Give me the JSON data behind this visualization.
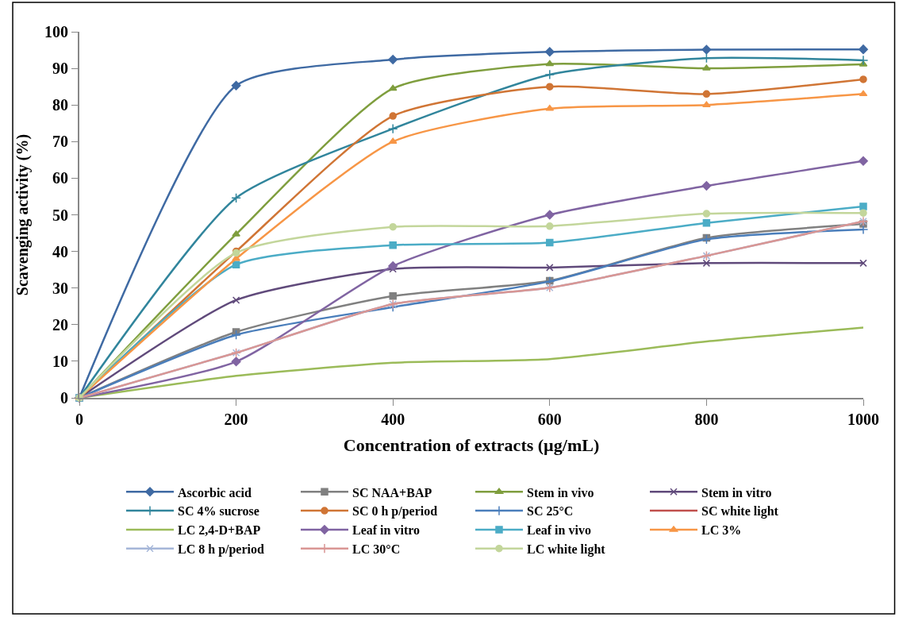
{
  "chart_data": {
    "type": "line",
    "xlabel": "Concentration of extracts (µg/mL)",
    "ylabel": "Scavenging activity (%)",
    "x": [
      0,
      200,
      400,
      600,
      800,
      1000
    ],
    "xlim": [
      0,
      1000
    ],
    "xticks": [
      0,
      200,
      400,
      600,
      800,
      1000
    ],
    "ylim": [
      0,
      100
    ],
    "yticks": [
      0,
      10,
      20,
      30,
      40,
      50,
      60,
      70,
      80,
      90,
      100
    ],
    "legend": "bottom",
    "series": [
      {
        "name": "Ascorbic acid",
        "color": "#3f6aa3",
        "marker": "diamond",
        "values": [
          0,
          85.3,
          92.4,
          94.5,
          95.1,
          95.2
        ]
      },
      {
        "name": "SC NAA+BAP",
        "color": "#808080",
        "marker": "square",
        "values": [
          0,
          18,
          27.8,
          32,
          43.7,
          47.5
        ]
      },
      {
        "name": "Stem in vivo",
        "color": "#7f9e3e",
        "marker": "triangle",
        "values": [
          0,
          44.7,
          84.5,
          91.2,
          90,
          91.1
        ]
      },
      {
        "name": "Stem in vitro",
        "color": "#604a7b",
        "marker": "x",
        "values": [
          0,
          26.7,
          35.2,
          35.6,
          36.8,
          36.8
        ]
      },
      {
        "name": "SC 4% sucrose",
        "color": "#31859c",
        "marker": "cross",
        "values": [
          0,
          54.6,
          73.5,
          88.3,
          92.8,
          92.2
        ]
      },
      {
        "name": "SC 0 h p/period",
        "color": "#d07535",
        "marker": "circle",
        "values": [
          0,
          40,
          77,
          85,
          83,
          87
        ]
      },
      {
        "name": "SC 25°C",
        "color": "#4a7ebb",
        "marker": "cross",
        "values": [
          0,
          17.2,
          24.8,
          31.8,
          43.3,
          46
        ]
      },
      {
        "name": "SC white light",
        "color": "#c0504d",
        "marker": "none",
        "values": [
          null,
          null,
          null,
          null,
          null,
          null
        ]
      },
      {
        "name": "LC 2,4-D+BAP",
        "color": "#9bbb59",
        "marker": "none",
        "values": [
          0,
          6,
          9.6,
          10.6,
          15.4,
          19.2
        ]
      },
      {
        "name": "Leaf in vitro",
        "color": "#8064a2",
        "marker": "diamond",
        "values": [
          0,
          9.9,
          36,
          50,
          57.9,
          64.7
        ]
      },
      {
        "name": "Leaf in vivo",
        "color": "#4bacc6",
        "marker": "square",
        "values": [
          0,
          36.4,
          41.7,
          42.4,
          47.8,
          52.3
        ]
      },
      {
        "name": "LC 3%",
        "color": "#f79646",
        "marker": "triangle",
        "values": [
          0,
          38,
          70,
          79,
          80,
          83
        ]
      },
      {
        "name": "LC 8 h p/period",
        "color": "#a5b6d8",
        "marker": "x",
        "values": [
          0,
          12.3,
          25.6,
          30.1,
          38.8,
          48.2
        ]
      },
      {
        "name": "LC 30°C",
        "color": "#d99694",
        "marker": "cross",
        "values": [
          0,
          12.3,
          25.6,
          30.1,
          38.8,
          48.2
        ]
      },
      {
        "name": "LC white light",
        "color": "#c3d69b",
        "marker": "circle",
        "values": [
          0,
          39.6,
          46.7,
          46.9,
          50.3,
          50.5
        ]
      }
    ]
  }
}
